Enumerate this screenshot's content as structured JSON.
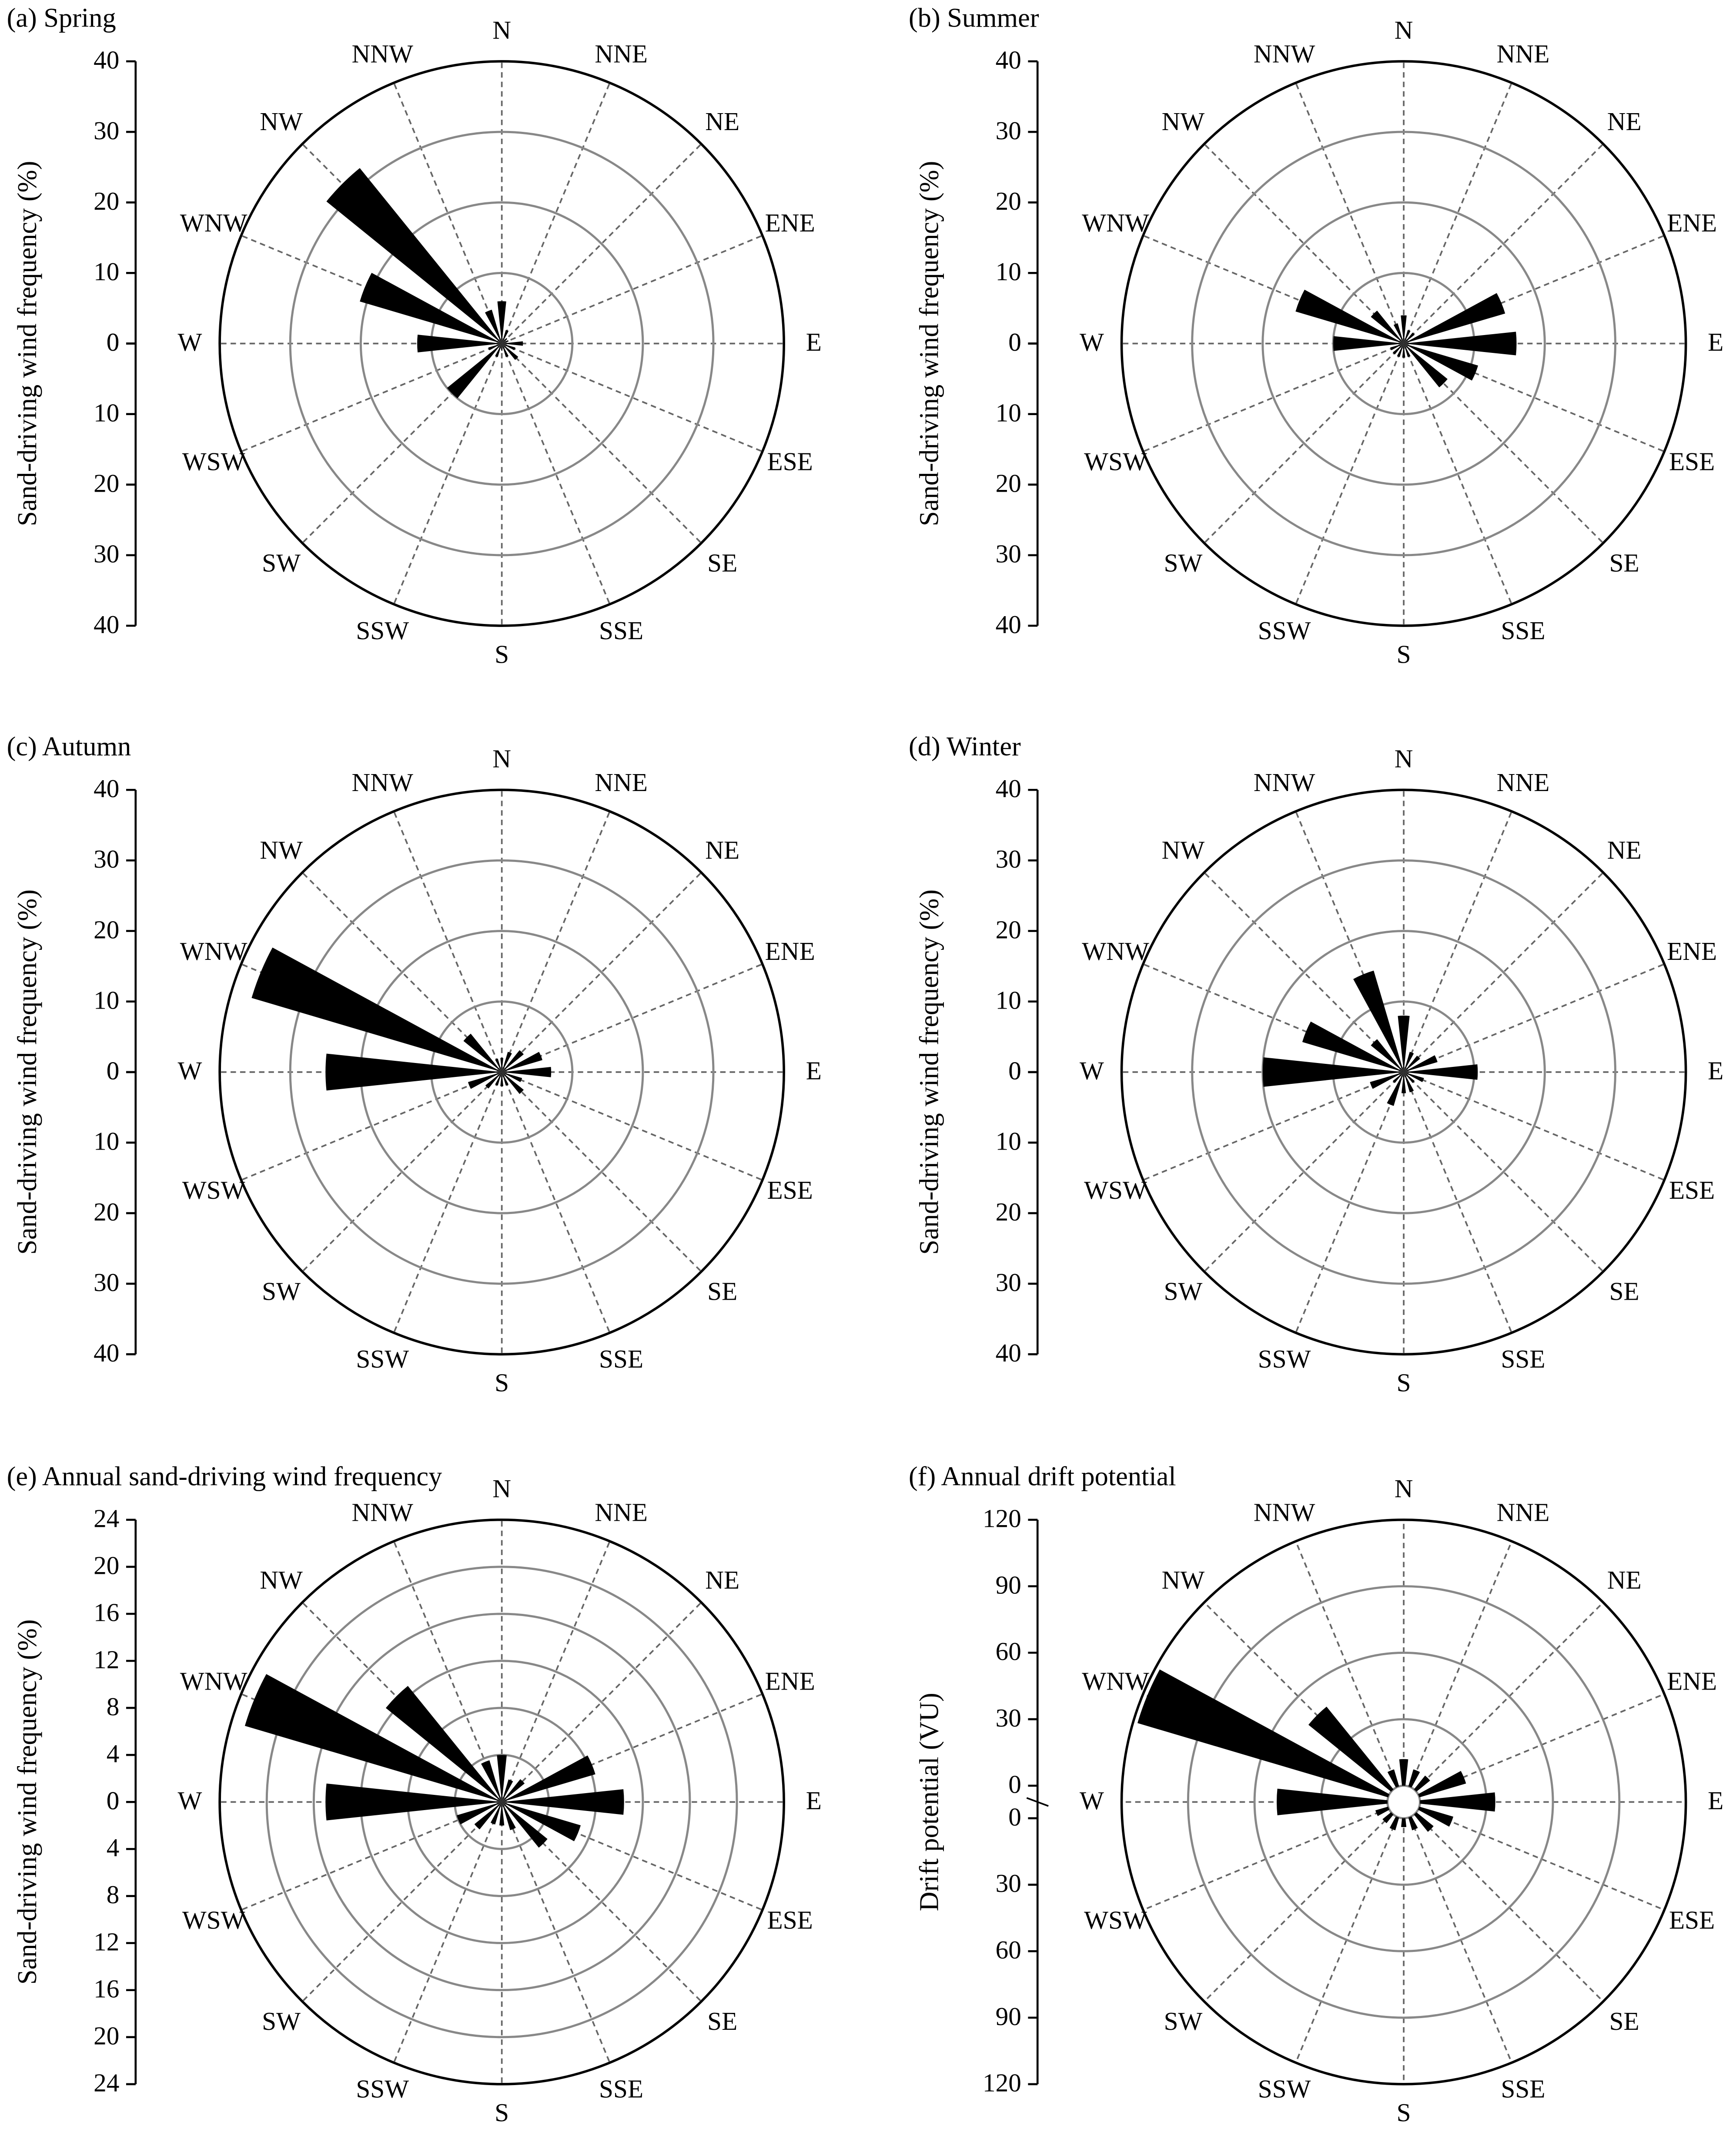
{
  "chart_data": [
    {
      "type": "rose",
      "title": "(a) Spring",
      "y_label": "Sand-driving wind frequency (%)",
      "categories": [
        "N",
        "NNE",
        "NE",
        "ENE",
        "E",
        "ESE",
        "SE",
        "SSE",
        "S",
        "SSW",
        "SW",
        "WSW",
        "W",
        "WNW",
        "NW",
        "NNW"
      ],
      "values": [
        6,
        2,
        1,
        1,
        3,
        2,
        3,
        2,
        1,
        2,
        10,
        2,
        12,
        21,
        32,
        5
      ],
      "ylim": [
        0,
        40
      ],
      "yticks": [
        0,
        10,
        20,
        30,
        40
      ],
      "color": "#000000"
    },
    {
      "type": "rose",
      "title": "(b) Summer",
      "y_label": "Sand-driving wind frequency (%)",
      "categories": [
        "N",
        "NNE",
        "NE",
        "ENE",
        "E",
        "ESE",
        "SE",
        "SSE",
        "S",
        "SSW",
        "SW",
        "WSW",
        "W",
        "WNW",
        "NW",
        "NNW"
      ],
      "values": [
        4,
        2,
        2,
        15,
        16,
        11,
        8,
        2,
        2,
        2,
        2,
        2,
        10,
        16,
        6,
        3
      ],
      "ylim": [
        0,
        40
      ],
      "yticks": [
        0,
        10,
        20,
        30,
        40
      ],
      "color": "#000000"
    },
    {
      "type": "rose",
      "title": "(c) Autumn",
      "y_label": "Sand-driving wind frequency (%)",
      "categories": [
        "N",
        "NNE",
        "NE",
        "ENE",
        "E",
        "ESE",
        "SE",
        "SSE",
        "S",
        "SSW",
        "SW",
        "WSW",
        "W",
        "WNW",
        "NW",
        "NNW"
      ],
      "values": [
        2,
        3,
        4,
        6,
        7,
        3,
        4,
        2,
        2,
        2,
        3,
        5,
        25,
        37,
        7,
        2
      ],
      "ylim": [
        0,
        40
      ],
      "yticks": [
        0,
        10,
        20,
        30,
        40
      ],
      "color": "#000000"
    },
    {
      "type": "rose",
      "title": "(d) Winter",
      "y_label": "Sand-driving wind frequency (%)",
      "categories": [
        "N",
        "NNE",
        "NE",
        "ENE",
        "E",
        "ESE",
        "SE",
        "SSE",
        "S",
        "SSW",
        "SW",
        "WSW",
        "W",
        "WNW",
        "NW",
        "NNW"
      ],
      "values": [
        8,
        3,
        3,
        5,
        10.5,
        3,
        2,
        3,
        3,
        5,
        2,
        5,
        20,
        15,
        6,
        15
      ],
      "ylim": [
        0,
        40
      ],
      "yticks": [
        0,
        10,
        20,
        30,
        40
      ],
      "color": "#000000"
    },
    {
      "type": "rose",
      "title": "(e) Annual sand-driving wind frequency",
      "y_label": "Sand-driving wind frequency (%)",
      "categories": [
        "N",
        "NNE",
        "NE",
        "ENE",
        "E",
        "ESE",
        "SE",
        "SSE",
        "S",
        "SSW",
        "SW",
        "WSW",
        "W",
        "WNW",
        "NW",
        "NNW"
      ],
      "values": [
        4,
        2,
        2.5,
        8.3,
        10.4,
        7,
        5,
        2.5,
        2,
        2,
        3,
        4,
        15,
        22.8,
        12.7,
        3.7
      ],
      "ylim": [
        0,
        24
      ],
      "yticks": [
        0,
        4,
        8,
        12,
        16,
        20,
        24
      ],
      "color": "#000000"
    },
    {
      "type": "rose",
      "title": "(f) Annual drift potential",
      "y_label": "Drift potential (VU)",
      "categories": [
        "N",
        "NNE",
        "NE",
        "ENE",
        "E",
        "ESE",
        "SE",
        "SSE",
        "S",
        "SSW",
        "SW",
        "WSW",
        "W",
        "WNW",
        "NW",
        "NNW"
      ],
      "values": [
        12,
        8,
        8,
        22,
        34,
        16,
        10,
        6,
        4,
        6,
        5,
        6,
        50,
        118,
        48,
        8
      ],
      "ylim": [
        0,
        120
      ],
      "yticks": [
        0,
        30,
        60,
        90,
        120
      ],
      "color": "#000000"
    }
  ]
}
